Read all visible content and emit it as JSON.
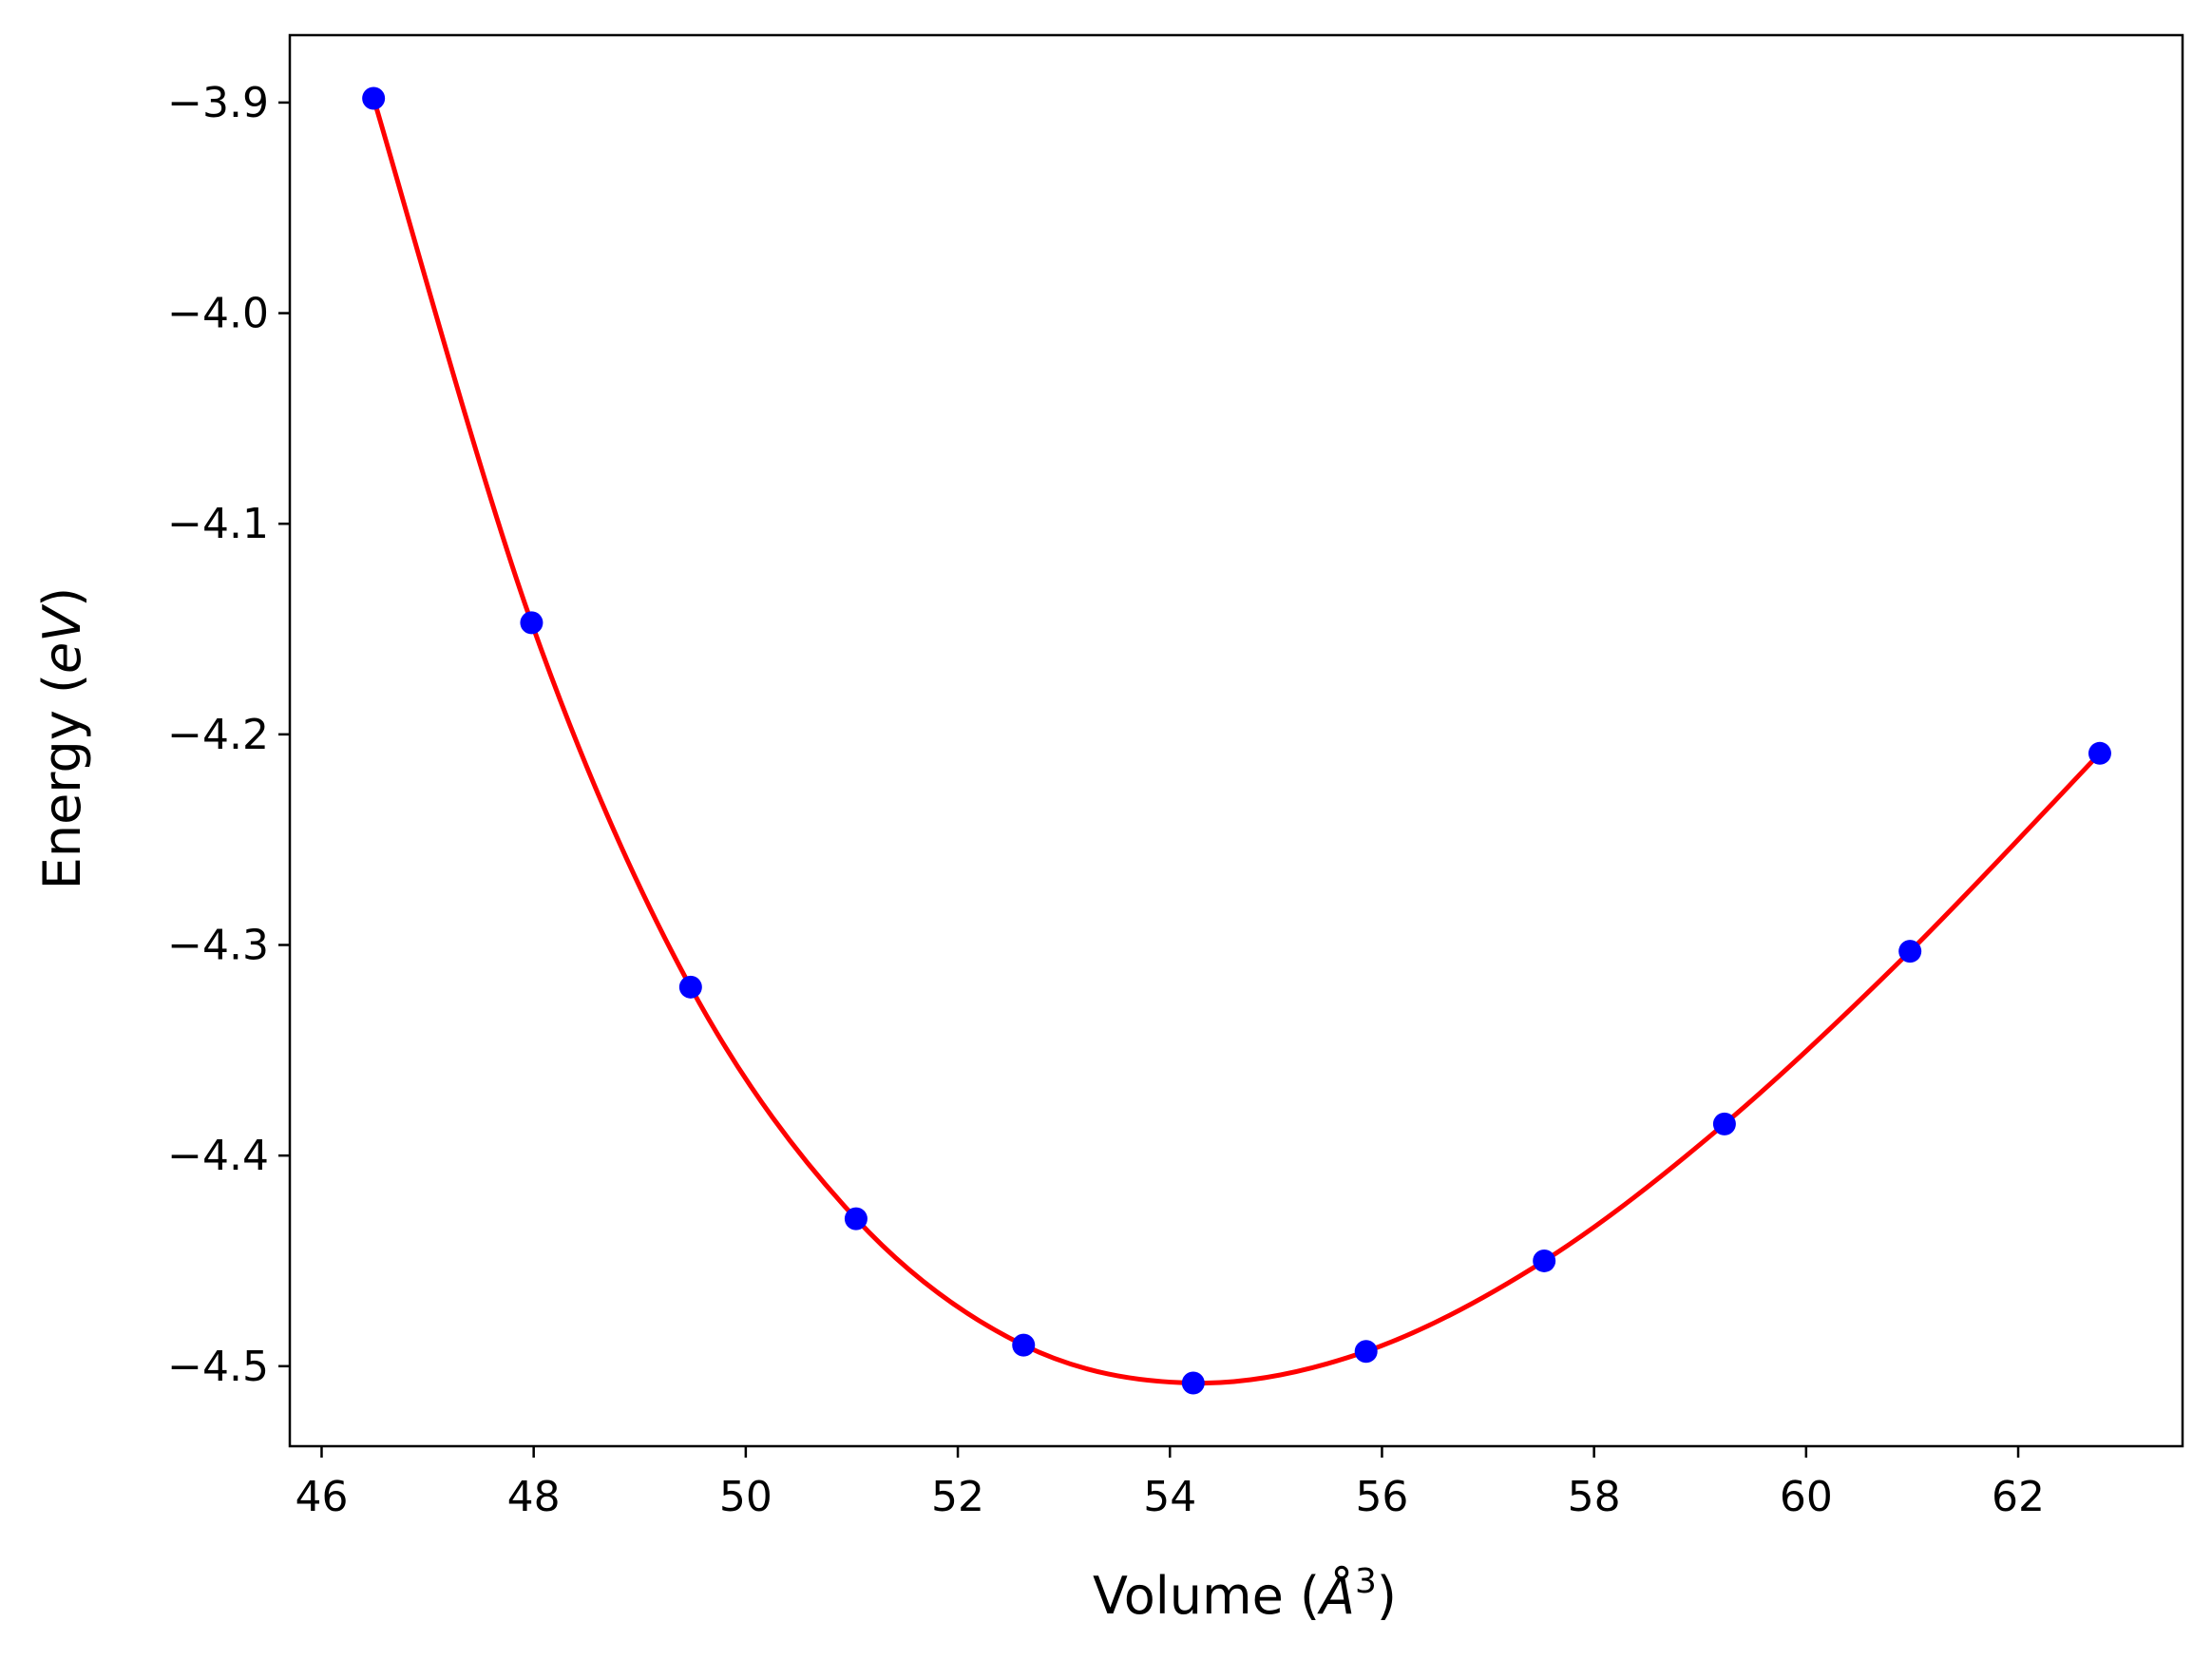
{
  "chart_data": {
    "type": "scatter",
    "title": "",
    "xlabel_main": "Volume (",
    "xlabel_unit": "Å",
    "xlabel_sup": "3",
    "xlabel_close": ")",
    "ylabel_main": "Energy (",
    "ylabel_unit": "eV",
    "ylabel_close": ")",
    "xlim": [
      45.7,
      63.55
    ],
    "ylim": [
      -4.538,
      -3.868
    ],
    "xticks": [
      46,
      48,
      50,
      52,
      54,
      56,
      58,
      60,
      62
    ],
    "xtick_labels": [
      "46",
      "48",
      "50",
      "52",
      "54",
      "56",
      "58",
      "60",
      "62"
    ],
    "yticks": [
      -3.9,
      -4.0,
      -4.1,
      -4.2,
      -4.3,
      -4.4,
      -4.5
    ],
    "ytick_labels": [
      "−3.9",
      "−4.0",
      "−4.1",
      "−4.2",
      "−4.3",
      "−4.4",
      "−4.5"
    ],
    "grid": false,
    "series": [
      {
        "kind": "points",
        "color": "#0000ff",
        "x": [
          46.49,
          47.98,
          49.48,
          51.04,
          52.62,
          54.22,
          55.85,
          57.53,
          59.23,
          60.98,
          62.77
        ],
        "y": [
          -3.898,
          -4.147,
          -4.32,
          -4.43,
          -4.49,
          -4.508,
          -4.493,
          -4.45,
          -4.385,
          -4.303,
          -4.209
        ]
      },
      {
        "kind": "fit-curve",
        "color": "#ff0000",
        "x": [
          46.49,
          47.98,
          49.48,
          51.04,
          52.62,
          54.22,
          55.85,
          57.53,
          59.23,
          60.98,
          62.77
        ],
        "y": [
          -3.898,
          -4.147,
          -4.32,
          -4.43,
          -4.49,
          -4.508,
          -4.493,
          -4.45,
          -4.385,
          -4.303,
          -4.209
        ]
      }
    ]
  }
}
